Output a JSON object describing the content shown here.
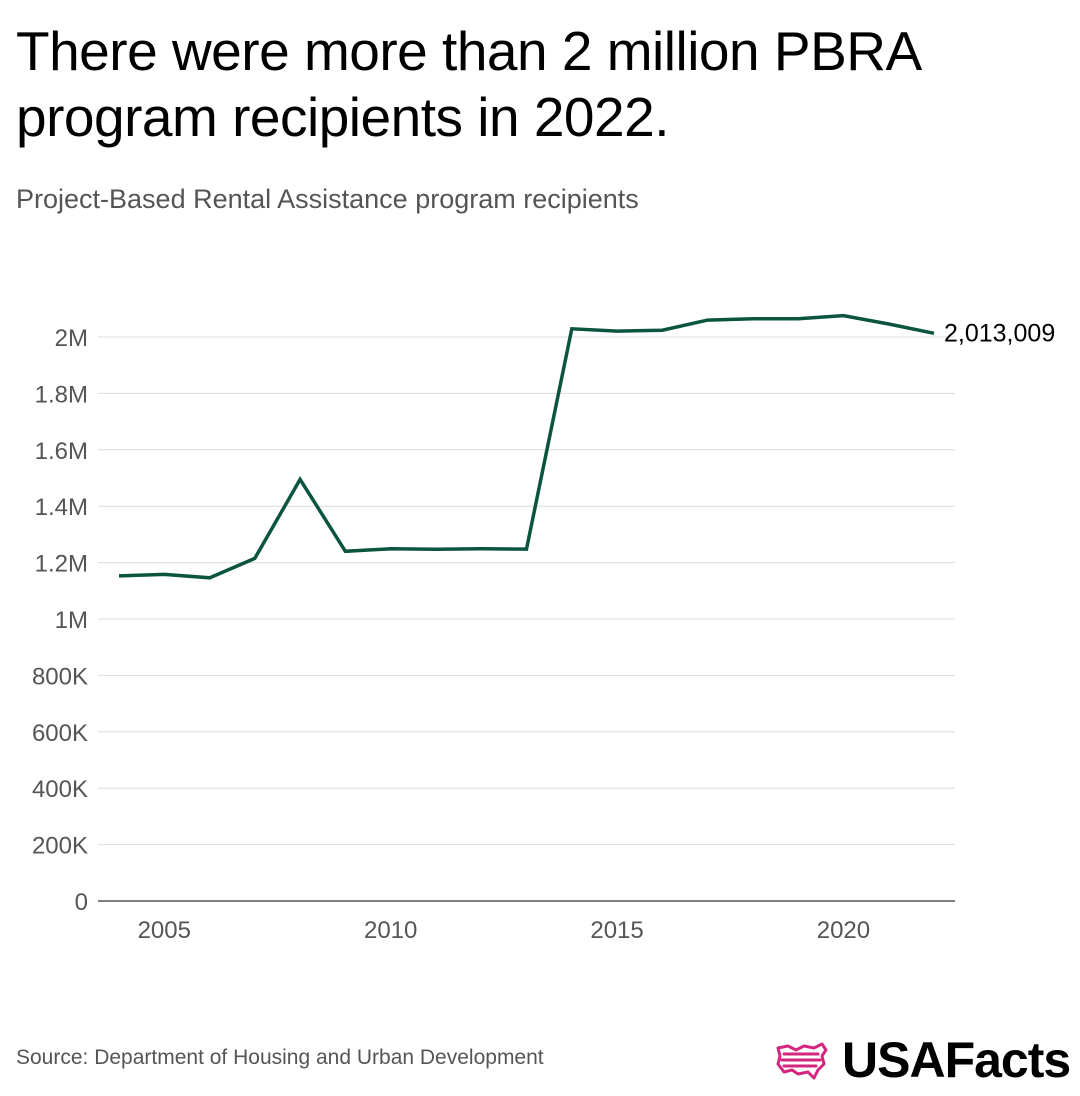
{
  "header": {
    "title": "There were more than 2 million PBRA program recipients in 2022.",
    "subtitle": "Project-Based Rental Assistance program recipients"
  },
  "footer": {
    "source": "Source: Department of Housing and Urban Development",
    "brand": "USAFacts"
  },
  "colors": {
    "line": "#0a5440",
    "grid": "#dcdcdc",
    "axis": "#555555",
    "brand_icon": "#d4267e"
  },
  "chart_data": {
    "type": "line",
    "title": "There were more than 2 million PBRA program recipients in 2022.",
    "subtitle": "Project-Based Rental Assistance program recipients",
    "xlabel": "",
    "ylabel": "",
    "ylim": [
      0,
      2000000
    ],
    "xlim": [
      2004,
      2022
    ],
    "y_ticks": [
      0,
      200000,
      400000,
      600000,
      800000,
      1000000,
      1200000,
      1400000,
      1600000,
      1800000,
      2000000
    ],
    "y_tick_labels": [
      "0",
      "200K",
      "400K",
      "600K",
      "800K",
      "1M",
      "1.2M",
      "1.4M",
      "1.6M",
      "1.8M",
      "2M"
    ],
    "x_ticks": [
      2005,
      2010,
      2015,
      2020
    ],
    "x_tick_labels": [
      "2005",
      "2010",
      "2015",
      "2020"
    ],
    "series": [
      {
        "name": "PBRA program recipients",
        "x": [
          2004,
          2005,
          2006,
          2007,
          2008,
          2009,
          2010,
          2011,
          2012,
          2013,
          2014,
          2015,
          2016,
          2017,
          2018,
          2019,
          2020,
          2021,
          2022
        ],
        "values": [
          1153000,
          1158000,
          1146000,
          1215000,
          1495000,
          1240000,
          1249000,
          1247000,
          1249000,
          1248000,
          2029000,
          2021000,
          2024000,
          2060000,
          2065000,
          2065000,
          2076000,
          2046000,
          2013009
        ]
      }
    ],
    "end_label": "2,013,009"
  }
}
